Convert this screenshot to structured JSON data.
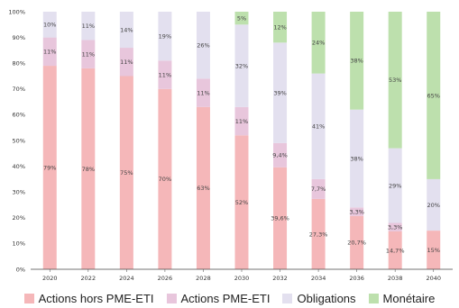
{
  "chart_data": {
    "type": "bar",
    "stacked": true,
    "categories": [
      "2020",
      "2022",
      "2024",
      "2026",
      "2028",
      "2030",
      "2032",
      "2034",
      "2036",
      "2038",
      "2040"
    ],
    "ylim": [
      0,
      100
    ],
    "yticks": [
      "0%",
      "10%",
      "20%",
      "30%",
      "40%",
      "50%",
      "60%",
      "70%",
      "80%",
      "90%",
      "100%"
    ],
    "grid": false,
    "legend_position": "bottom",
    "series": [
      {
        "name": "Actions hors PME-ETI",
        "color": "#f5b7b9",
        "values": [
          79,
          78,
          75,
          70,
          63,
          52,
          39.6,
          27.3,
          20.7,
          14.7,
          15
        ],
        "labels": [
          "79%",
          "78%",
          "75%",
          "70%",
          "63%",
          "52%",
          "39,6%",
          "27,3%",
          "20,7%",
          "14,7%",
          "15%"
        ]
      },
      {
        "name": "Actions PME-ETI",
        "color": "#e8c6dc",
        "values": [
          11,
          11,
          11,
          11,
          11,
          11,
          9.4,
          7.7,
          3.3,
          3.3,
          0
        ],
        "labels": [
          "11%",
          "11%",
          "11%",
          "11%",
          "11%",
          "11%",
          "9,4%",
          "7,7%",
          "3,3%",
          "3,3%",
          ""
        ]
      },
      {
        "name": "Obligations",
        "color": "#e3e0ef",
        "values": [
          10,
          11,
          14,
          19,
          26,
          32,
          39,
          41,
          38,
          29,
          20
        ],
        "labels": [
          "10%",
          "11%",
          "14%",
          "19%",
          "26%",
          "32%",
          "39%",
          "41%",
          "38%",
          "29%",
          "20%"
        ]
      },
      {
        "name": "Monétaire",
        "color": "#bde0ad",
        "values": [
          0,
          0,
          0,
          0,
          0,
          5,
          12,
          24,
          38,
          53,
          65
        ],
        "labels": [
          "",
          "",
          "",
          "",
          "",
          "5%",
          "12%",
          "24%",
          "38%",
          "53%",
          "65%"
        ]
      }
    ]
  }
}
